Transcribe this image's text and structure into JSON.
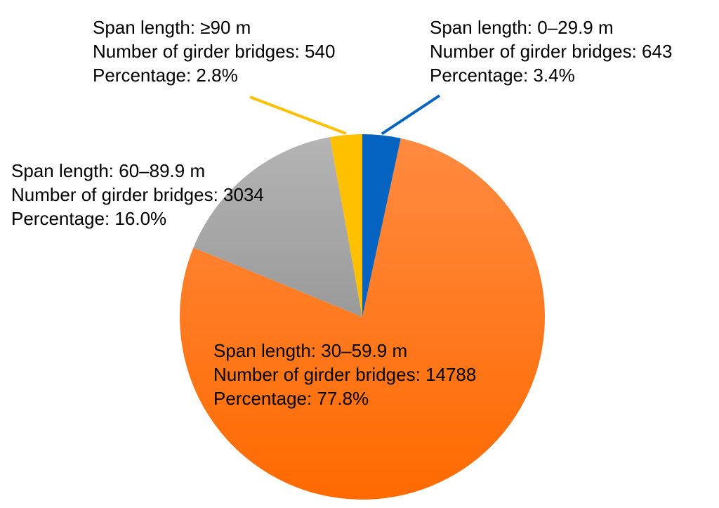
{
  "chart_data": {
    "type": "pie",
    "start_angle_deg": 0,
    "direction": "clockwise",
    "slices": [
      {
        "span": "0–29.9 m",
        "count": 643,
        "percent": 3.4,
        "color": "#0563C1",
        "label_lines": [
          "Span length: 0–29.9 m",
          "Number of girder bridges: 643",
          "Percentage: 3.4%"
        ]
      },
      {
        "span": "30–59.9 m",
        "count": 14788,
        "percent": 77.8,
        "color": "#FF7A1A",
        "label_lines": [
          "Span length: 30–59.9 m",
          "Number of girder bridges: 14788",
          "Percentage: 77.8%"
        ]
      },
      {
        "span": "60–89.9 m",
        "count": 3034,
        "percent": 16.0,
        "color": "#A6A6A6",
        "label_lines": [
          "Span length: 60–89.9 m",
          "Number of girder bridges: 3034",
          "Percentage: 16.0%"
        ]
      },
      {
        "span": "≥90 m",
        "count": 540,
        "percent": 2.8,
        "color": "#FFC000",
        "label_lines": [
          "Span length: ≥90 m",
          "Number of girder bridges: 540",
          "Percentage: 2.8%"
        ]
      }
    ],
    "leader_lines_for": [
      0,
      3
    ]
  }
}
